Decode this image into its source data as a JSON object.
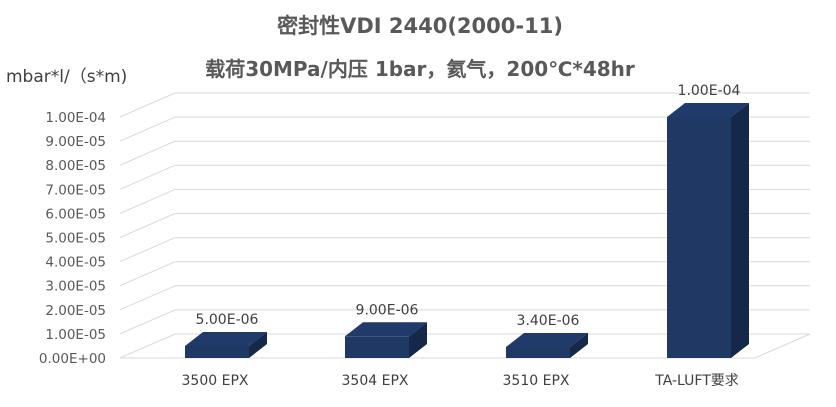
{
  "chart_data": {
    "type": "bar",
    "title": "密封性VDI 2440(2000-11)",
    "subtitle": "载荷30MPa/内压 1bar，氦气，200℃*48hr",
    "ylabel": "mbar*l/（s*m)",
    "xlabel": "",
    "categories": [
      "3500 EPX",
      "3504 EPX",
      "3510 EPX",
      "TA-LUFT要求"
    ],
    "values": [
      5e-06,
      9e-06,
      3.4e-06,
      0.0001
    ],
    "data_labels": [
      "5.00E-06",
      "9.00E-06",
      "3.40E-06",
      "1.00E-04"
    ],
    "ylim": [
      0,
      0.0001
    ],
    "y_ticks": [
      0,
      1e-05,
      2e-05,
      3e-05,
      4e-05,
      5e-05,
      6e-05,
      7e-05,
      8e-05,
      9e-05,
      0.0001
    ],
    "y_tick_labels": [
      "0.00E+00",
      "1.00E-05",
      "2.00E-05",
      "3.00E-05",
      "4.00E-05",
      "5.00E-05",
      "6.00E-05",
      "7.00E-05",
      "8.00E-05",
      "9.00E-05",
      "1.00E-04"
    ],
    "grid": true,
    "style": "3d-column",
    "bar_color": "#1F3864",
    "bar_side_color": "#16284A",
    "bar_top_color": "#203A6A"
  }
}
